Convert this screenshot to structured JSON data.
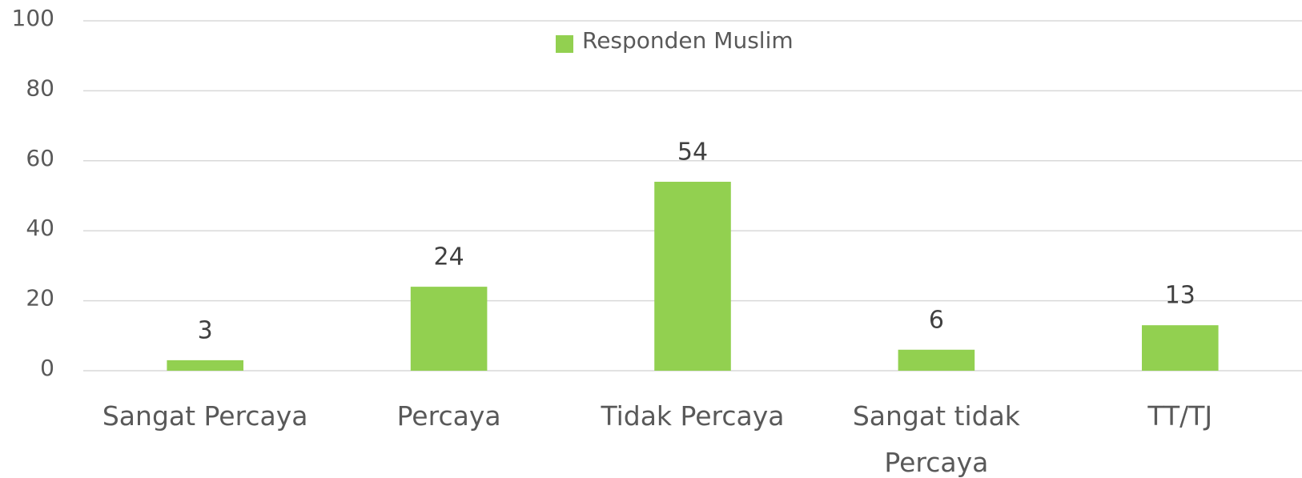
{
  "chart_data": {
    "type": "bar",
    "categories": [
      "Sangat Percaya",
      "Percaya",
      "Tidak Percaya",
      "Sangat tidak Percaya",
      "TT/TJ"
    ],
    "series": [
      {
        "name": "Responden Muslim",
        "color": "#92d050",
        "values": [
          3,
          24,
          54,
          6,
          13
        ]
      }
    ],
    "ylim": [
      0,
      100
    ],
    "yticks": [
      0,
      20,
      40,
      60,
      80,
      100
    ],
    "grid": true,
    "legend": "top"
  }
}
